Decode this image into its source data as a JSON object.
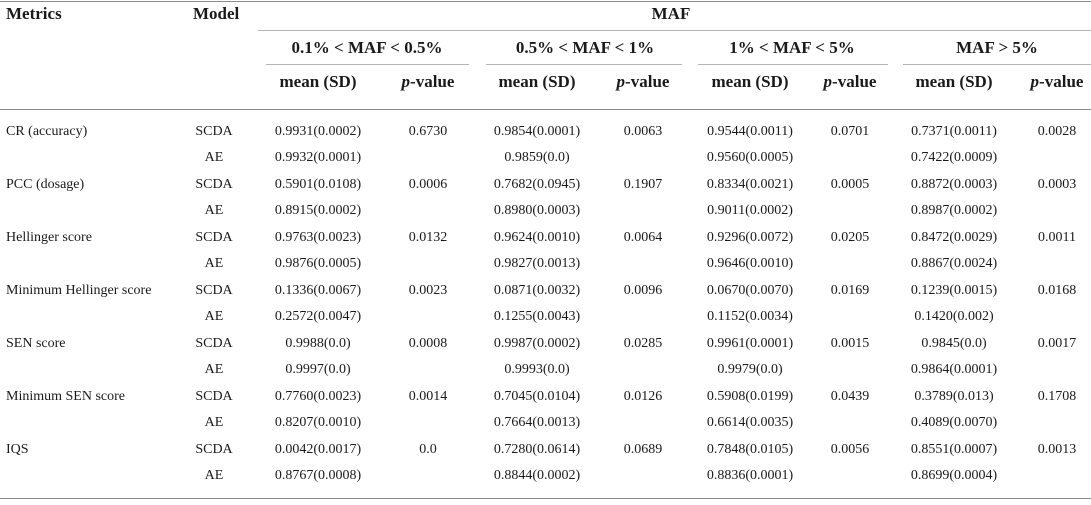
{
  "header": {
    "metrics": "Metrics",
    "model": "Model",
    "maf": "MAF",
    "groups": [
      "0.1% < MAF < 0.5%",
      "0.5% < MAF < 1%",
      "1% < MAF < 5%",
      "MAF > 5%"
    ],
    "mean_sd": "mean (SD)",
    "p_letter": "p",
    "p_suffix": "-value"
  },
  "rows": [
    {
      "metric": "CR (accuracy)",
      "scda": {
        "model": "SCDA",
        "values": [
          "0.9931(0.0002)",
          "0.6730",
          "0.9854(0.0001)",
          "0.0063",
          "0.9544(0.0011)",
          "0.0701",
          "0.7371(0.0011)",
          "0.0028"
        ]
      },
      "ae": {
        "model": "AE",
        "values": [
          "0.9932(0.0001)",
          "0.9859(0.0)",
          "0.9560(0.0005)",
          "0.7422(0.0009)"
        ]
      }
    },
    {
      "metric": "PCC (dosage)",
      "scda": {
        "model": "SCDA",
        "values": [
          "0.5901(0.0108)",
          "0.0006",
          "0.7682(0.0945)",
          "0.1907",
          "0.8334(0.0021)",
          "0.0005",
          "0.8872(0.0003)",
          "0.0003"
        ]
      },
      "ae": {
        "model": "AE",
        "values": [
          "0.8915(0.0002)",
          "0.8980(0.0003)",
          "0.9011(0.0002)",
          "0.8987(0.0002)"
        ]
      }
    },
    {
      "metric": "Hellinger score",
      "scda": {
        "model": "SCDA",
        "values": [
          "0.9763(0.0023)",
          "0.0132",
          "0.9624(0.0010)",
          "0.0064",
          "0.9296(0.0072)",
          "0.0205",
          "0.8472(0.0029)",
          "0.0011"
        ]
      },
      "ae": {
        "model": "AE",
        "values": [
          "0.9876(0.0005)",
          "0.9827(0.0013)",
          "0.9646(0.0010)",
          "0.8867(0.0024)"
        ]
      }
    },
    {
      "metric": "Minimum Hellinger score",
      "scda": {
        "model": "SCDA",
        "values": [
          "0.1336(0.0067)",
          "0.0023",
          "0.0871(0.0032)",
          "0.0096",
          "0.0670(0.0070)",
          "0.0169",
          "0.1239(0.0015)",
          "0.0168"
        ]
      },
      "ae": {
        "model": "AE",
        "values": [
          "0.2572(0.0047)",
          "0.1255(0.0043)",
          "0.1152(0.0034)",
          "0.1420(0.002)"
        ]
      }
    },
    {
      "metric": "SEN score",
      "scda": {
        "model": "SCDA",
        "values": [
          "0.9988(0.0)",
          "0.0008",
          "0.9987(0.0002)",
          "0.0285",
          "0.9961(0.0001)",
          "0.0015",
          "0.9845(0.0)",
          "0.0017"
        ]
      },
      "ae": {
        "model": "AE",
        "values": [
          "0.9997(0.0)",
          "0.9993(0.0)",
          "0.9979(0.0)",
          "0.9864(0.0001)"
        ]
      }
    },
    {
      "metric": "Minimum SEN score",
      "scda": {
        "model": "SCDA",
        "values": [
          "0.7760(0.0023)",
          "0.0014",
          "0.7045(0.0104)",
          "0.0126",
          "0.5908(0.0199)",
          "0.0439",
          "0.3789(0.013)",
          "0.1708"
        ]
      },
      "ae": {
        "model": "AE",
        "values": [
          "0.8207(0.0010)",
          "0.7664(0.0013)",
          "0.6614(0.0035)",
          "0.4089(0.0070)"
        ]
      }
    },
    {
      "metric": "IQS",
      "scda": {
        "model": "SCDA",
        "values": [
          "0.0042(0.0017)",
          "0.0",
          "0.7280(0.0614)",
          "0.0689",
          "0.7848(0.0105)",
          "0.0056",
          "0.8551(0.0007)",
          "0.0013"
        ]
      },
      "ae": {
        "model": "AE",
        "values": [
          "0.8767(0.0008)",
          "0.8844(0.0002)",
          "0.8836(0.0001)",
          "0.8699(0.0004)"
        ]
      }
    }
  ]
}
